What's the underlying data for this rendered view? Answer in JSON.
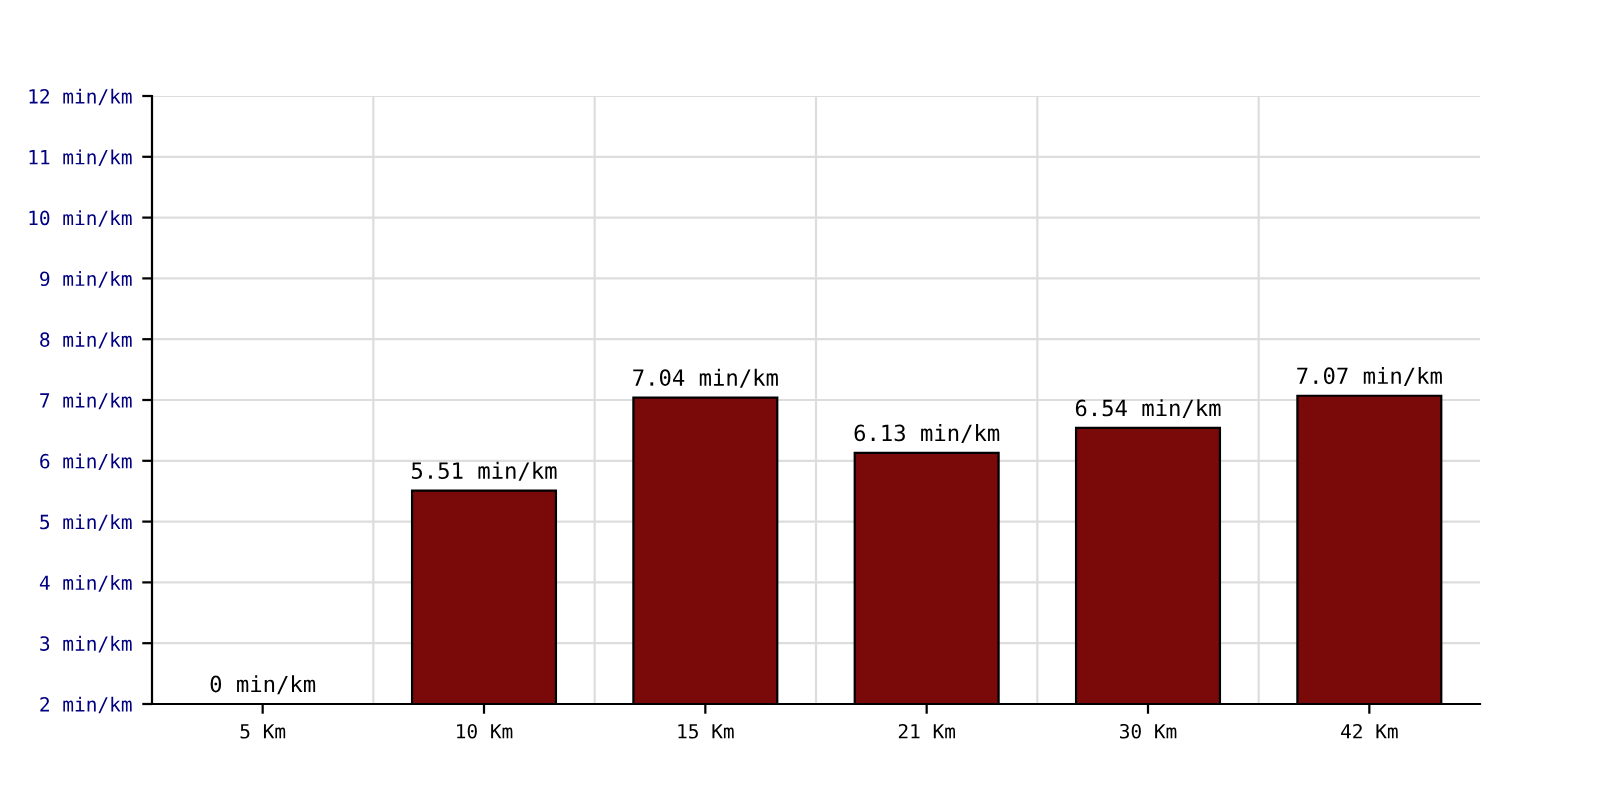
{
  "chart_data": {
    "type": "bar",
    "categories": [
      "5 Km",
      "10 Km",
      "15 Km",
      "21 Km",
      "30 Km",
      "42 Km"
    ],
    "values": [
      null,
      5.51,
      7.04,
      6.13,
      6.54,
      7.07
    ],
    "value_labels": [
      "0 min/km",
      "5.51 min/km",
      "7.04 min/km",
      "6.13 min/km",
      "6.54 min/km",
      "7.07 min/km"
    ],
    "color": "#7a0a0a",
    "ylim": [
      2,
      12
    ],
    "yticks": [
      {
        "value": 2,
        "label": "2 min/km"
      },
      {
        "value": 3,
        "label": "3 min/km"
      },
      {
        "value": 4,
        "label": "4 min/km"
      },
      {
        "value": 5,
        "label": "5 min/km"
      },
      {
        "value": 6,
        "label": "6 min/km"
      },
      {
        "value": 7,
        "label": "7 min/km"
      },
      {
        "value": 8,
        "label": "8 min/km"
      },
      {
        "value": 9,
        "label": "9 min/km"
      },
      {
        "value": 10,
        "label": "10 min/km"
      },
      {
        "value": 11,
        "label": "11 min/km"
      },
      {
        "value": 12,
        "label": "12 min/km"
      }
    ],
    "grid": true
  }
}
